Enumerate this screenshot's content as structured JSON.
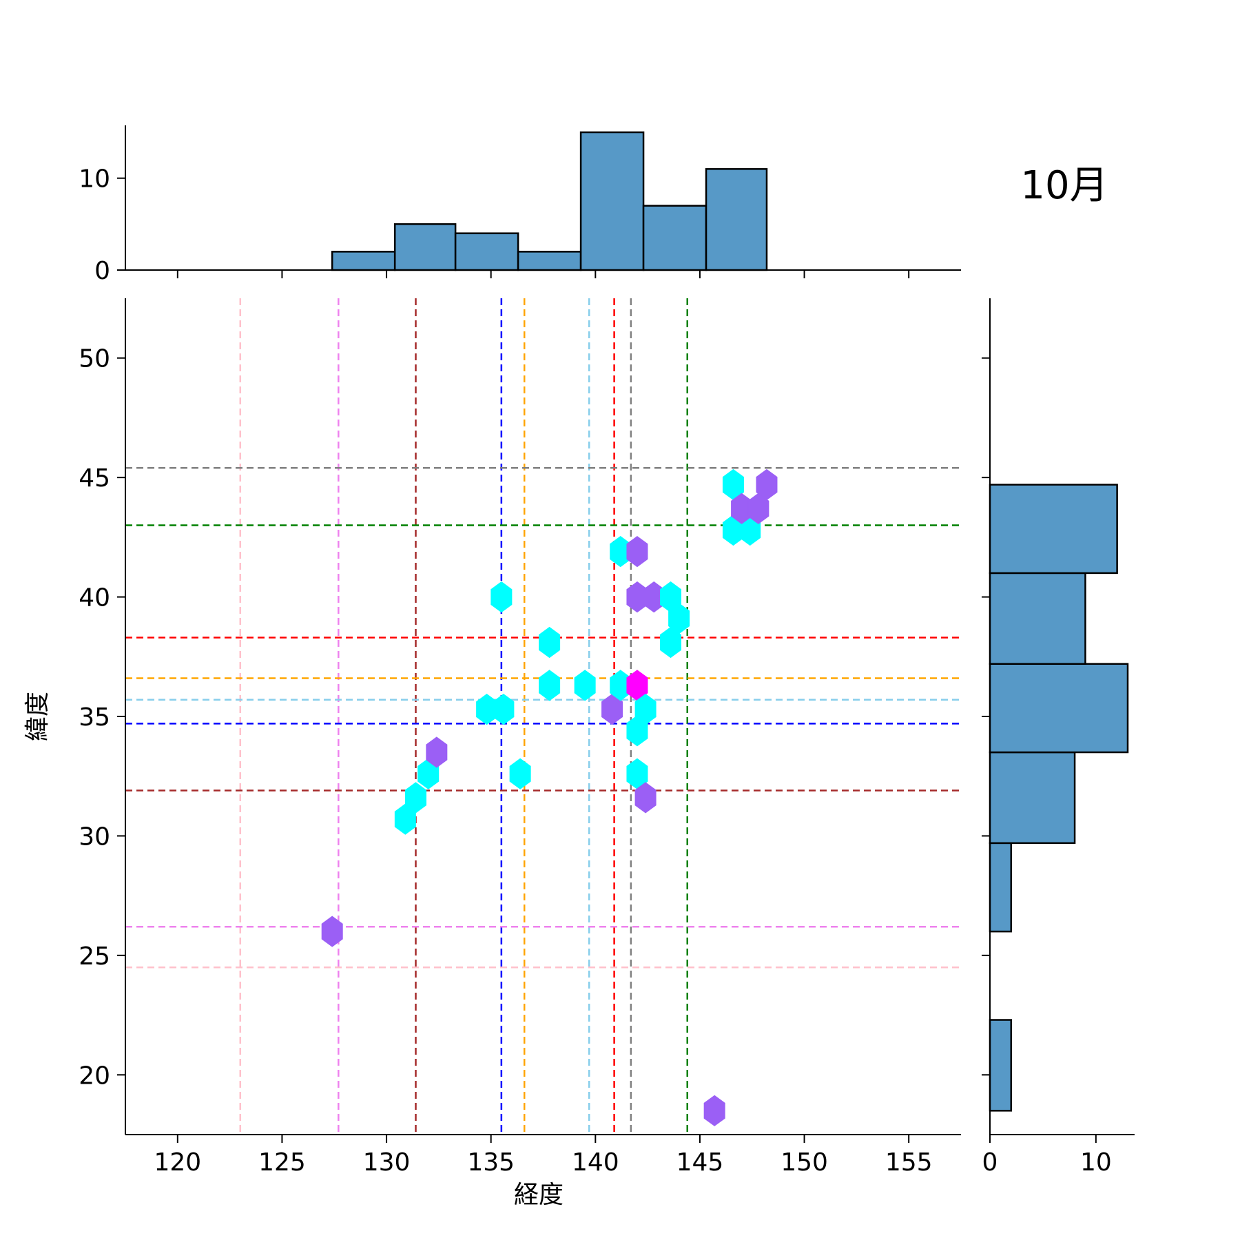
{
  "title": "10月",
  "chart_data": {
    "type": "hexbin",
    "xlabel": "経度",
    "ylabel": "緯度",
    "xlim": [
      117.5,
      157.5
    ],
    "ylim": [
      17.5,
      52.5
    ],
    "xticks": [
      120,
      125,
      130,
      135,
      140,
      145,
      150,
      155
    ],
    "yticks": [
      20,
      25,
      30,
      35,
      40,
      45,
      50
    ],
    "hexbins": [
      {
        "x": 127.4,
        "y": 26.0,
        "color": "#9b5ff5"
      },
      {
        "x": 130.9,
        "y": 30.7,
        "color": "#00ffff"
      },
      {
        "x": 131.4,
        "y": 31.6,
        "color": "#00ffff"
      },
      {
        "x": 132.0,
        "y": 32.6,
        "color": "#00ffff"
      },
      {
        "x": 132.4,
        "y": 33.5,
        "color": "#9b5ff5"
      },
      {
        "x": 135.5,
        "y": 40.0,
        "color": "#00ffff"
      },
      {
        "x": 134.8,
        "y": 35.3,
        "color": "#00ffff"
      },
      {
        "x": 135.6,
        "y": 35.3,
        "color": "#00ffff"
      },
      {
        "x": 136.4,
        "y": 32.6,
        "color": "#00ffff"
      },
      {
        "x": 137.8,
        "y": 38.1,
        "color": "#00ffff"
      },
      {
        "x": 137.8,
        "y": 36.3,
        "color": "#00ffff"
      },
      {
        "x": 139.5,
        "y": 36.3,
        "color": "#00ffff"
      },
      {
        "x": 140.8,
        "y": 35.3,
        "color": "#9b5ff5"
      },
      {
        "x": 141.2,
        "y": 41.9,
        "color": "#00ffff"
      },
      {
        "x": 141.2,
        "y": 36.3,
        "color": "#00ffff"
      },
      {
        "x": 142.0,
        "y": 41.9,
        "color": "#9b5ff5"
      },
      {
        "x": 142.0,
        "y": 40.0,
        "color": "#9b5ff5"
      },
      {
        "x": 142.0,
        "y": 36.3,
        "color": "#ff00ff"
      },
      {
        "x": 142.4,
        "y": 35.3,
        "color": "#00ffff"
      },
      {
        "x": 142.0,
        "y": 34.4,
        "color": "#00ffff"
      },
      {
        "x": 142.0,
        "y": 32.6,
        "color": "#00ffff"
      },
      {
        "x": 142.4,
        "y": 31.6,
        "color": "#9b5ff5"
      },
      {
        "x": 142.8,
        "y": 40.0,
        "color": "#9b5ff5"
      },
      {
        "x": 143.6,
        "y": 40.0,
        "color": "#00ffff"
      },
      {
        "x": 144.0,
        "y": 39.1,
        "color": "#00ffff"
      },
      {
        "x": 143.6,
        "y": 38.1,
        "color": "#00ffff"
      },
      {
        "x": 145.7,
        "y": 18.5,
        "color": "#9b5ff5"
      },
      {
        "x": 146.6,
        "y": 44.7,
        "color": "#00ffff"
      },
      {
        "x": 146.6,
        "y": 42.8,
        "color": "#00ffff"
      },
      {
        "x": 147.4,
        "y": 42.8,
        "color": "#00ffff"
      },
      {
        "x": 147.0,
        "y": 43.7,
        "color": "#9b5ff5"
      },
      {
        "x": 147.8,
        "y": 43.7,
        "color": "#9b5ff5"
      },
      {
        "x": 148.2,
        "y": 44.7,
        "color": "#9b5ff5"
      }
    ],
    "vertical_lines": [
      {
        "x": 123.0,
        "color": "#ffc0cb"
      },
      {
        "x": 127.7,
        "color": "#ee82ee"
      },
      {
        "x": 131.4,
        "color": "#a52a2a"
      },
      {
        "x": 135.5,
        "color": "#0000ff"
      },
      {
        "x": 136.6,
        "color": "#ffa500"
      },
      {
        "x": 139.7,
        "color": "#87ceeb"
      },
      {
        "x": 140.9,
        "color": "#ff0000"
      },
      {
        "x": 141.7,
        "color": "#808080"
      },
      {
        "x": 144.4,
        "color": "#008000"
      }
    ],
    "horizontal_lines": [
      {
        "y": 45.4,
        "color": "#808080"
      },
      {
        "y": 43.0,
        "color": "#008000"
      },
      {
        "y": 38.3,
        "color": "#ff0000"
      },
      {
        "y": 36.6,
        "color": "#ffa500"
      },
      {
        "y": 35.7,
        "color": "#87ceeb"
      },
      {
        "y": 34.7,
        "color": "#0000ff"
      },
      {
        "y": 31.9,
        "color": "#a52a2a"
      },
      {
        "y": 26.2,
        "color": "#ee82ee"
      },
      {
        "y": 24.5,
        "color": "#ffc0cb"
      }
    ],
    "marginal_x": {
      "bin_edges": [
        127.4,
        130.4,
        133.3,
        136.3,
        139.3,
        142.3,
        145.3,
        148.2
      ],
      "counts": [
        2,
        5,
        4,
        2,
        15,
        7,
        11
      ],
      "ylim": [
        0,
        15.75
      ],
      "yticks": [
        0,
        10
      ]
    },
    "marginal_y": {
      "bin_edges": [
        18.5,
        22.3,
        26.0,
        29.7,
        33.5,
        37.2,
        41.0,
        44.7
      ],
      "counts": [
        2,
        0,
        2,
        8,
        13,
        9,
        12
      ],
      "xlim": [
        0,
        13.65
      ],
      "xticks": [
        0,
        10
      ]
    },
    "bar_color": "#5799c7"
  }
}
